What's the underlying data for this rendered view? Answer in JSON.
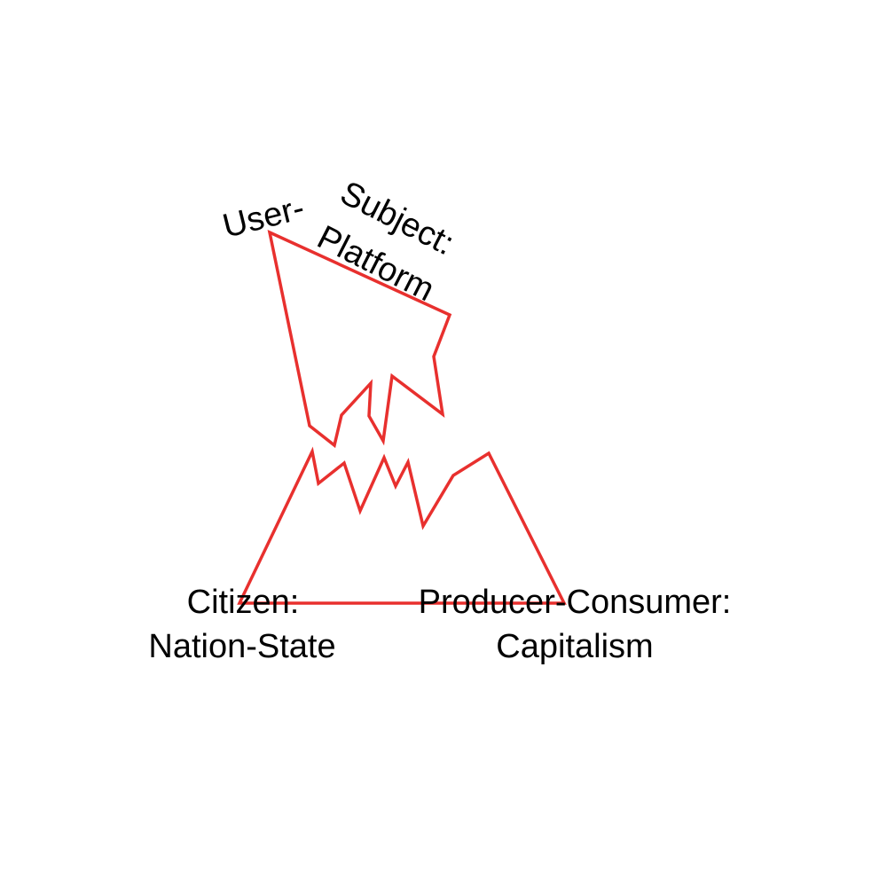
{
  "colors": {
    "outline": "#e8302e",
    "text": "#000000",
    "background": "#ffffff"
  },
  "labels": {
    "user_subject_line1": "User-",
    "user_subject_line2": "Subject:",
    "platform": "Platform",
    "citizen": "Citizen:",
    "nation_state": "Nation-State",
    "producer_consumer": "Producer-Consumer:",
    "capitalism": "Capitalism"
  }
}
